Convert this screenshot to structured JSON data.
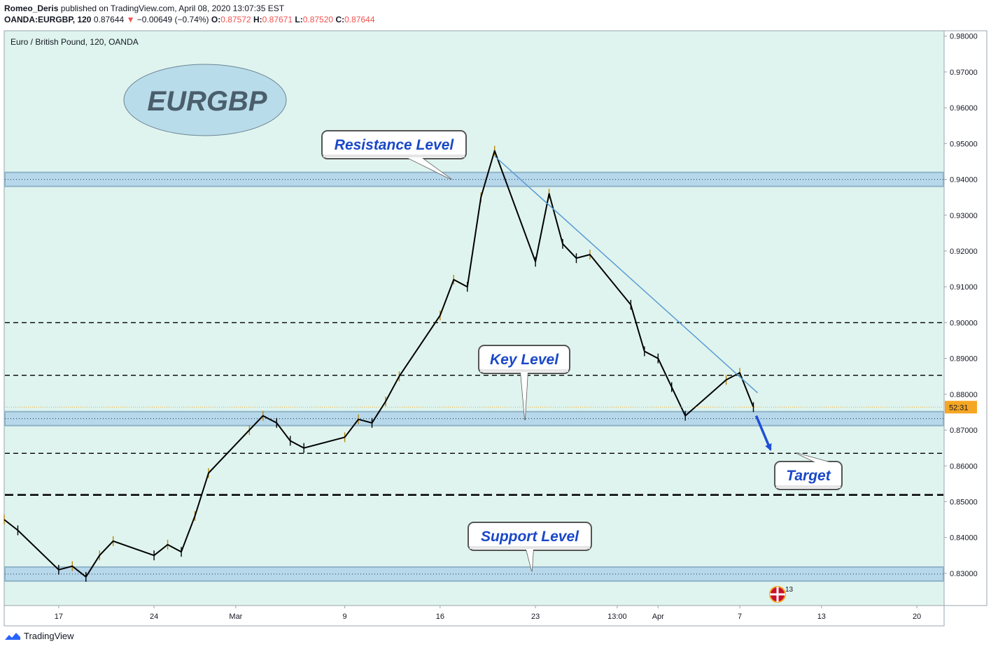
{
  "header": {
    "author": "Romeo_Deris",
    "published_text": "published on TradingView.com, April 08, 2020 13:07:35 EST",
    "symbol": "OANDA:EURGBP, 120",
    "last": "0.87644",
    "change": "−0.00649 (−0.74%)",
    "o_label": "O:",
    "o_value": "0.87572",
    "h_label": "H:",
    "h_value": "0.87671",
    "l_label": "L:",
    "l_value": "0.87520",
    "c_label": "C:",
    "c_value": "0.87644"
  },
  "footer": {
    "brand": "TradingView"
  },
  "colors": {
    "plot_bg": "#dff4ee",
    "zone": "#b7d7ea",
    "zone_edge": "#8fb3c8",
    "trendline": "#5b9bd5",
    "callout_text": "#1a48c8",
    "price_tag": "#f5a623",
    "arrow": "#1f4fd6"
  },
  "chart_data": {
    "type": "line",
    "instrument_label": "Euro / British Pound, 120, OANDA",
    "watermark": "EURGBP",
    "y_ticks": [
      "0.98000",
      "0.97000",
      "0.96000",
      "0.95000",
      "0.94000",
      "0.93000",
      "0.92000",
      "0.91000",
      "0.90000",
      "0.89000",
      "0.88000",
      "0.87000",
      "0.86000",
      "0.85000",
      "0.84000",
      "0.83000"
    ],
    "ylim": [
      0.821,
      0.9815
    ],
    "x_ticks": [
      "17",
      "24",
      "Mar",
      "9",
      "16",
      "23",
      "13:00",
      "Apr",
      "7",
      "13",
      "20"
    ],
    "x_range": [
      "Feb 13",
      "Apr 22"
    ],
    "price_tag": "52:31",
    "current_price": 0.8764,
    "x": [
      "Feb 13",
      "Feb 14",
      "Feb 17",
      "Feb 18",
      "Feb 19",
      "Feb 20",
      "Feb 21",
      "Feb 24",
      "Feb 25",
      "Feb 26",
      "Feb 27",
      "Feb 28",
      "Mar 2",
      "Mar 3",
      "Mar 4",
      "Mar 5",
      "Mar 6",
      "Mar 9",
      "Mar 10",
      "Mar 11",
      "Mar 12",
      "Mar 13",
      "Mar 16",
      "Mar 17",
      "Mar 18",
      "Mar 19",
      "Mar 20",
      "Mar 23",
      "Mar 24",
      "Mar 25",
      "Mar 26",
      "Mar 27",
      "Mar 30",
      "Mar 31",
      "Apr 1",
      "Apr 2",
      "Apr 3",
      "Apr 6",
      "Apr 7",
      "Apr 8"
    ],
    "series": [
      {
        "values": [
          0.845,
          0.842,
          0.831,
          0.832,
          0.829,
          0.835,
          0.839,
          0.835,
          0.838,
          0.836,
          0.846,
          0.858,
          0.87,
          0.874,
          0.872,
          0.867,
          0.865,
          0.868,
          0.873,
          0.872,
          0.878,
          0.885,
          0.902,
          0.912,
          0.91,
          0.935,
          0.948,
          0.917,
          0.936,
          0.922,
          0.918,
          0.919,
          0.905,
          0.892,
          0.89,
          0.882,
          0.874,
          0.884,
          0.886,
          0.8764
        ]
      }
    ],
    "horizontal_levels": [
      {
        "label": "Resistance Level",
        "value": 0.94,
        "style": "zone"
      },
      {
        "label": "Key Level",
        "value": 0.8732,
        "style": "zone"
      },
      {
        "label": "Support Level",
        "value": 0.8298,
        "style": "zone"
      },
      {
        "value": 0.9,
        "style": "dashed"
      },
      {
        "value": 0.8853,
        "style": "dashed"
      },
      {
        "value": 0.8635,
        "style": "dashed"
      },
      {
        "value": 0.8519,
        "style": "dashed-bold"
      }
    ],
    "trendline": [
      {
        "x": "Mar 20",
        "y": 0.9465
      },
      {
        "x": "Apr 8",
        "y": 0.8804
      }
    ],
    "target_label": "Target",
    "target_arrow": [
      {
        "x": "Apr 8",
        "y": 0.874
      },
      {
        "x": "Apr 9",
        "y": 0.8645
      }
    ],
    "events_badge": "13"
  }
}
